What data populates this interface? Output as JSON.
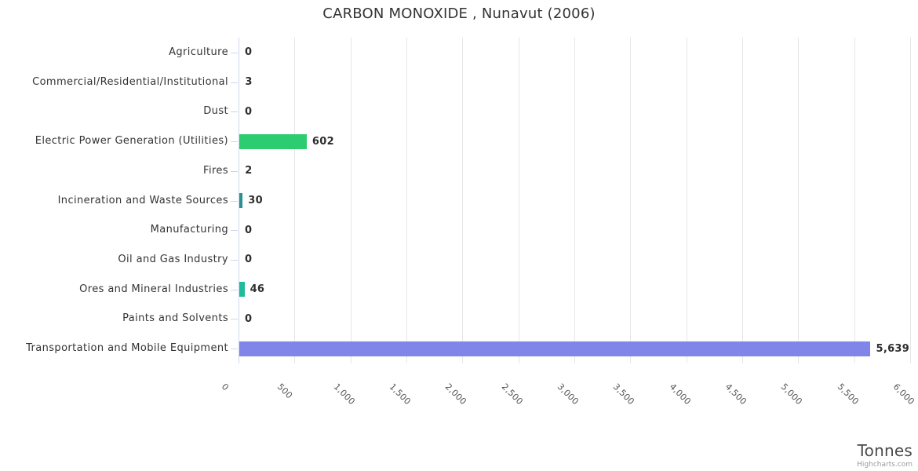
{
  "chart_data": {
    "type": "bar",
    "orientation": "horizontal",
    "title": "CARBON MONOXIDE , Nunavut (2006)",
    "xlabel": "Tonnes",
    "ylabel": "",
    "credits": "Highcharts.com",
    "xlim": [
      0,
      6000
    ],
    "tick_interval": 500,
    "tick_labels": [
      "0",
      "500",
      "1,000",
      "1,500",
      "2,000",
      "2,500",
      "3,000",
      "3,500",
      "4,000",
      "4,500",
      "5,000",
      "5,500",
      "6,000"
    ],
    "grid": true,
    "legend": false,
    "categories": [
      "Agriculture",
      "Commercial/Residential/Institutional",
      "Dust",
      "Electric Power Generation (Utilities)",
      "Fires",
      "Incineration and Waste Sources",
      "Manufacturing",
      "Oil and Gas Industry",
      "Ores and Mineral Industries",
      "Paints and Solvents",
      "Transportation and Mobile Equipment"
    ],
    "values": [
      0,
      3,
      0,
      602,
      2,
      30,
      0,
      0,
      46,
      0,
      5639
    ],
    "value_labels": [
      "0",
      "3",
      "0",
      "602",
      "2",
      "30",
      "0",
      "0",
      "46",
      "0",
      "5,639"
    ],
    "bar_colors": [
      "#7cb5ec",
      "#7cb5ec",
      "#7cb5ec",
      "#2ecc71",
      "#7cb5ec",
      "#2b908f",
      "#7cb5ec",
      "#7cb5ec",
      "#1ebc97",
      "#7cb5ec",
      "#8085e9"
    ],
    "grid_color": "#e6e6e6",
    "axis_line_color": "#ccd6eb",
    "label_color": "#333333",
    "tick_label_color": "#555555"
  }
}
